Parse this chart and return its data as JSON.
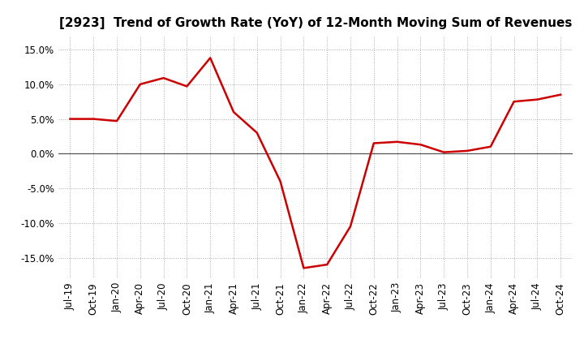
{
  "title": "[2923]  Trend of Growth Rate (YoY) of 12-Month Moving Sum of Revenues",
  "line_color": "#cc0000",
  "background_color": "#ffffff",
  "grid_color": "#aaaaaa",
  "zero_line_color": "#555555",
  "ylim": [
    -0.18,
    0.17
  ],
  "yticks": [
    -0.15,
    -0.1,
    -0.05,
    0.0,
    0.05,
    0.1,
    0.15
  ],
  "ytick_labels": [
    "-15.0%",
    "-10.0%",
    "-5.0%",
    "0.0%",
    "5.0%",
    "10.0%",
    "15.0%"
  ],
  "data": [
    {
      "date": "Jul-19",
      "value": 0.05
    },
    {
      "date": "Oct-19",
      "value": 0.05
    },
    {
      "date": "Jan-20",
      "value": 0.047
    },
    {
      "date": "Apr-20",
      "value": 0.1
    },
    {
      "date": "Jul-20",
      "value": 0.109
    },
    {
      "date": "Oct-20",
      "value": 0.097
    },
    {
      "date": "Jan-21",
      "value": 0.138
    },
    {
      "date": "Apr-21",
      "value": 0.06
    },
    {
      "date": "Jul-21",
      "value": 0.03
    },
    {
      "date": "Oct-21",
      "value": -0.04
    },
    {
      "date": "Jan-22",
      "value": -0.165
    },
    {
      "date": "Apr-22",
      "value": -0.16
    },
    {
      "date": "Jul-22",
      "value": -0.105
    },
    {
      "date": "Oct-22",
      "value": 0.015
    },
    {
      "date": "Jan-23",
      "value": 0.017
    },
    {
      "date": "Apr-23",
      "value": 0.013
    },
    {
      "date": "Jul-23",
      "value": 0.002
    },
    {
      "date": "Oct-23",
      "value": 0.004
    },
    {
      "date": "Jan-24",
      "value": 0.01
    },
    {
      "date": "Apr-24",
      "value": 0.075
    },
    {
      "date": "Jul-24",
      "value": 0.078
    },
    {
      "date": "Oct-24",
      "value": 0.085
    }
  ],
  "xtick_labels": [
    "Jul-19",
    "Oct-19",
    "Jan-20",
    "Apr-20",
    "Jul-20",
    "Oct-20",
    "Jan-21",
    "Apr-21",
    "Jul-21",
    "Oct-21",
    "Jan-22",
    "Apr-22",
    "Jul-22",
    "Oct-22",
    "Jan-23",
    "Apr-23",
    "Jul-23",
    "Oct-23",
    "Jan-24",
    "Apr-24",
    "Jul-24",
    "Oct-24"
  ],
  "title_fontsize": 11,
  "tick_fontsize": 8.5,
  "line_width": 1.8
}
